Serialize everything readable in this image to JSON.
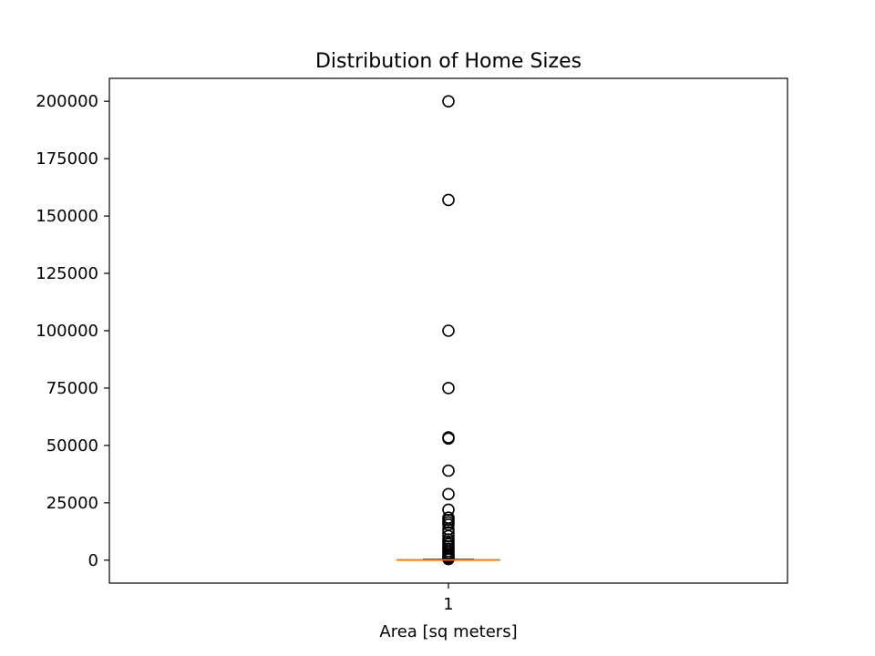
{
  "chart_data": {
    "type": "box",
    "title": "Distribution of Home Sizes",
    "xlabel": "Area [sq meters]",
    "ylabel": "",
    "categories": [
      "1"
    ],
    "ylim": [
      -10000,
      210000
    ],
    "yticks": [
      0,
      25000,
      50000,
      75000,
      100000,
      125000,
      150000,
      175000,
      200000
    ],
    "ytick_labels": [
      "0",
      "25000",
      "50000",
      "75000",
      "100000",
      "125000",
      "150000",
      "175000",
      "200000"
    ],
    "box": {
      "q1": 0,
      "median": 100,
      "q3": 200,
      "whisker_low": 0,
      "whisker_high": 400
    },
    "outliers": [
      200000,
      157000,
      100000,
      75000,
      53500,
      53000,
      39000,
      28800,
      22000,
      18500,
      17500,
      16500,
      15500,
      13500,
      12000,
      10500,
      9000,
      8000,
      7000,
      6000,
      5000,
      4000,
      3200,
      2500,
      1800,
      1200,
      800,
      500
    ],
    "grid": false,
    "colors": {
      "median": "#ff7f0e",
      "box": "#000000",
      "outlier_edge": "#000000"
    }
  }
}
